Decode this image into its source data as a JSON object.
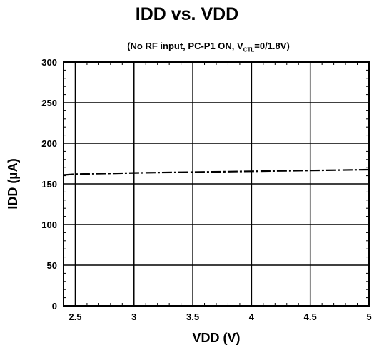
{
  "chart_data": {
    "type": "line",
    "title": "IDD vs. VDD",
    "subtitle": {
      "prefix": "(No RF input, PC-P1 ON, V",
      "subscript": "CTL",
      "suffix": "=0/1.8V)"
    },
    "xlabel": "VDD (V)",
    "ylabel": "IDD (µA)",
    "xlim": [
      2.4,
      5.0
    ],
    "ylim": [
      0,
      300
    ],
    "xticks": [
      2.5,
      3,
      3.5,
      4,
      4.5,
      5
    ],
    "xtick_labels": [
      "2.5",
      "3",
      "3.5",
      "4",
      "4.5",
      "5"
    ],
    "yticks": [
      0,
      50,
      100,
      150,
      200,
      250,
      300
    ],
    "ytick_labels": [
      "0",
      "50",
      "100",
      "150",
      "200",
      "250",
      "300"
    ],
    "grid": true,
    "series": [
      {
        "line_style": "dash-dot",
        "color": "#000000",
        "x": [
          2.4,
          2.5,
          3.0,
          3.5,
          4.0,
          4.5,
          5.0
        ],
        "y": [
          161,
          162,
          163.5,
          164.5,
          165.5,
          166.5,
          167.5
        ]
      }
    ]
  }
}
